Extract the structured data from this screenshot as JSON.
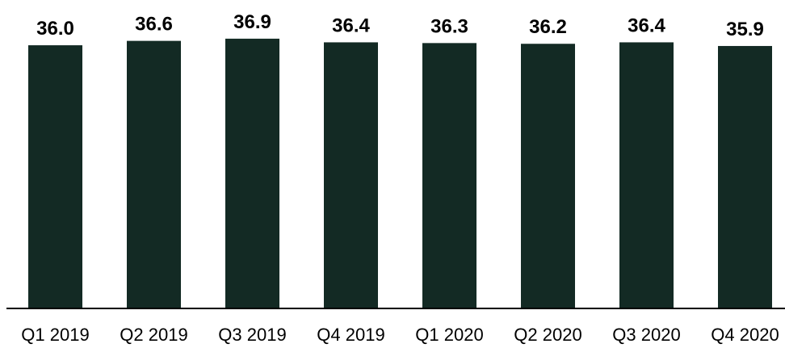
{
  "chart_data": {
    "type": "bar",
    "categories": [
      "Q1 2019",
      "Q2 2019",
      "Q3 2019",
      "Q4 2019",
      "Q1 2020",
      "Q2 2020",
      "Q3 2020",
      "Q4 2020"
    ],
    "values": [
      36.0,
      36.6,
      36.9,
      36.4,
      36.3,
      36.2,
      36.4,
      35.9
    ],
    "value_labels": [
      "36.0",
      "36.6",
      "36.9",
      "36.4",
      "36.3",
      "36.2",
      "36.4",
      "35.9"
    ],
    "title": "",
    "xlabel": "",
    "ylabel": "",
    "ylim": [
      0,
      37
    ],
    "grid": false,
    "bar_color": "#132a24",
    "axis_color": "#000000"
  }
}
